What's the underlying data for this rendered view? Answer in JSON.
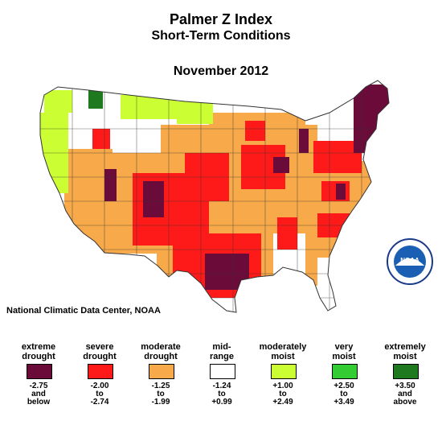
{
  "title": "Palmer Z Index",
  "subtitle": "Short-Term Conditions",
  "period": "November 2012",
  "source": "National Climatic Data Center, NOAA",
  "logo_text": "NOAA",
  "legend": [
    {
      "label1": "extreme",
      "label2": "drought",
      "color": "#6b0b3a",
      "r1": "-2.75",
      "r2": "and",
      "r3": "below"
    },
    {
      "label1": "severe",
      "label2": "drought",
      "color": "#ff1a1a",
      "r1": "-2.00",
      "r2": "to",
      "r3": "-2.74"
    },
    {
      "label1": "moderate",
      "label2": "drought",
      "color": "#f8a94a",
      "r1": "-1.25",
      "r2": "to",
      "r3": "-1.99"
    },
    {
      "label1": "mid-",
      "label2": "range",
      "color": "#ffffff",
      "r1": "-1.24",
      "r2": "to",
      "r3": "+0.99"
    },
    {
      "label1": "moderately",
      "label2": "moist",
      "color": "#ccff33",
      "r1": "+1.00",
      "r2": "to",
      "r3": "+2.49"
    },
    {
      "label1": "very",
      "label2": "moist",
      "color": "#33cc33",
      "r1": "+2.50",
      "r2": "to",
      "r3": "+3.49"
    },
    {
      "label1": "extremely",
      "label2": "moist",
      "color": "#1f7a1f",
      "r1": "+3.50",
      "r2": "and",
      "r3": "above"
    }
  ]
}
